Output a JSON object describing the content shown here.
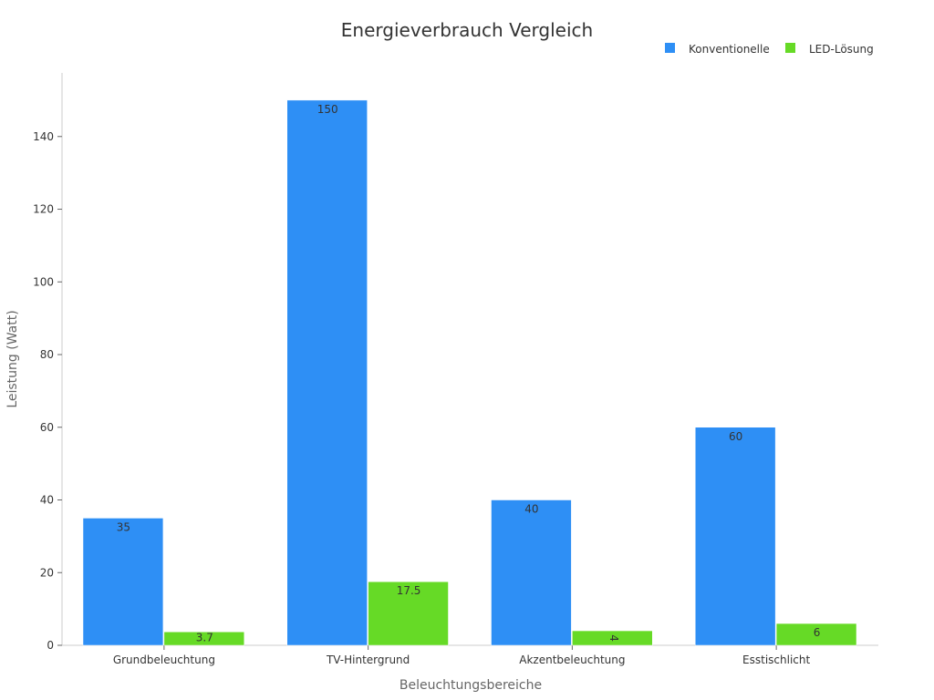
{
  "chart_data": {
    "type": "bar",
    "title": "Energieverbrauch Vergleich",
    "xlabel": "Beleuchtungsbereiche",
    "ylabel": "Leistung (Watt)",
    "categories": [
      "Grundbeleuchtung",
      "TV-Hintergrund",
      "Akzentbeleuchtung",
      "Esstischlicht"
    ],
    "series": [
      {
        "name": "Konventionelle",
        "values": [
          35,
          150,
          40,
          60
        ],
        "color": "#2e8ff5",
        "labels": [
          "35",
          "150",
          "40",
          "60"
        ]
      },
      {
        "name": "LED-Lösung",
        "values": [
          3.7,
          17.5,
          4,
          6
        ],
        "color": "#66da26",
        "labels": [
          "3.7",
          "17.5",
          "4",
          "6"
        ]
      }
    ],
    "ylim": [
      0,
      157.5
    ],
    "yticks": [
      0,
      20,
      40,
      60,
      80,
      100,
      120,
      140
    ],
    "grid": false,
    "legend": "top-right"
  }
}
